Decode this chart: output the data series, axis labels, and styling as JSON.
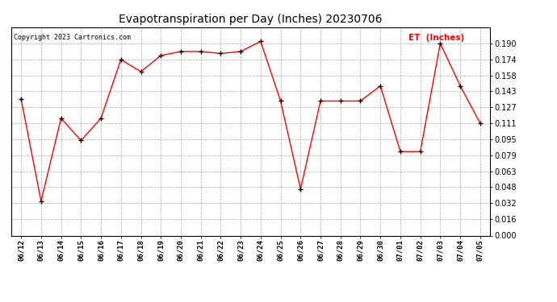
{
  "title": "Evapotranspiration per Day (Inches) 20230706",
  "copyright": "Copyright 2023 Cartronics.com",
  "legend_label": "ET  (Inches)",
  "dates": [
    "06/12",
    "06/13",
    "06/14",
    "06/15",
    "06/16",
    "06/17",
    "06/18",
    "06/19",
    "06/20",
    "06/21",
    "06/22",
    "06/23",
    "06/24",
    "06/25",
    "06/26",
    "06/27",
    "06/28",
    "06/29",
    "06/30",
    "07/01",
    "07/02",
    "07/03",
    "07/04",
    "07/05"
  ],
  "values": [
    0.135,
    0.034,
    0.116,
    0.094,
    0.116,
    0.174,
    0.162,
    0.178,
    0.182,
    0.182,
    0.18,
    0.182,
    0.192,
    0.133,
    0.046,
    0.133,
    0.133,
    0.133,
    0.148,
    0.083,
    0.083,
    0.19,
    0.148,
    0.111
  ],
  "line_color": "#FF0000",
  "marker_color": "#000000",
  "background_color": "#FFFFFF",
  "grid_color": "#AAAAAA",
  "ylim_min": 0.0,
  "ylim_max": 0.206,
  "yticks": [
    0.0,
    0.016,
    0.032,
    0.048,
    0.063,
    0.079,
    0.095,
    0.111,
    0.127,
    0.143,
    0.158,
    0.174,
    0.19
  ]
}
